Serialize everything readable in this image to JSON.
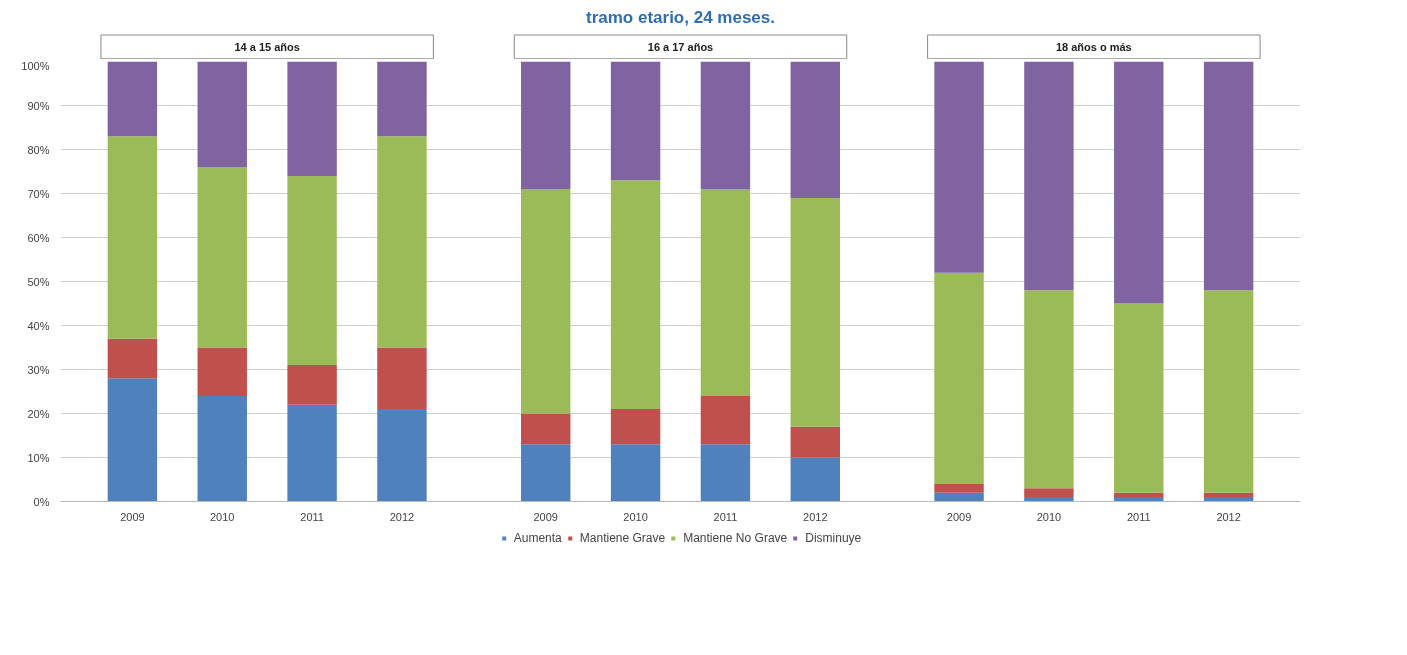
{
  "chart_data": {
    "type": "bar",
    "stacked": true,
    "title": "tramo etario, 24 meses.",
    "categories": [
      "2009",
      "2010",
      "2011",
      "2012",
      "2009",
      "2010",
      "2011",
      "2012",
      "2009",
      "2010",
      "2011",
      "2012"
    ],
    "annotations": [
      "14 a 15 años",
      "16 a 17 años",
      "18 años o más"
    ],
    "series": [
      {
        "name": "Aumenta",
        "color": "#4f81bd",
        "values": [
          28,
          24,
          22,
          21,
          13,
          13,
          13,
          10,
          2,
          1,
          1,
          1
        ]
      },
      {
        "name": "Mantiene Grave",
        "color": "#c0504d",
        "values": [
          9,
          11,
          9,
          14,
          7,
          8,
          11,
          7,
          2,
          2,
          1,
          1
        ]
      },
      {
        "name": "Mantiene No Grave",
        "color": "#9bbb59",
        "values": [
          46,
          41,
          43,
          48,
          51,
          52,
          47,
          52,
          48,
          45,
          43,
          46
        ]
      },
      {
        "name": "Disminuye",
        "color": "#8064a2",
        "values": [
          17,
          24,
          26,
          17,
          29,
          27,
          29,
          31,
          48,
          52,
          55,
          52
        ]
      }
    ],
    "ylim": [
      0,
      100
    ],
    "yticks": [
      {
        "value": 0,
        "label": "0%"
      },
      {
        "value": 10,
        "label": "10%"
      },
      {
        "value": 20,
        "label": "20%"
      },
      {
        "value": 30,
        "label": "30%"
      },
      {
        "value": 40,
        "label": "40%"
      },
      {
        "value": 50,
        "label": "50%"
      },
      {
        "value": 60,
        "label": "60%"
      },
      {
        "value": 70,
        "label": "70%"
      },
      {
        "value": 80,
        "label": "80%"
      },
      {
        "value": 90,
        "label": "90%"
      },
      {
        "value": 100,
        "label": "100%"
      }
    ],
    "grid": "y",
    "legend": "bottom"
  }
}
